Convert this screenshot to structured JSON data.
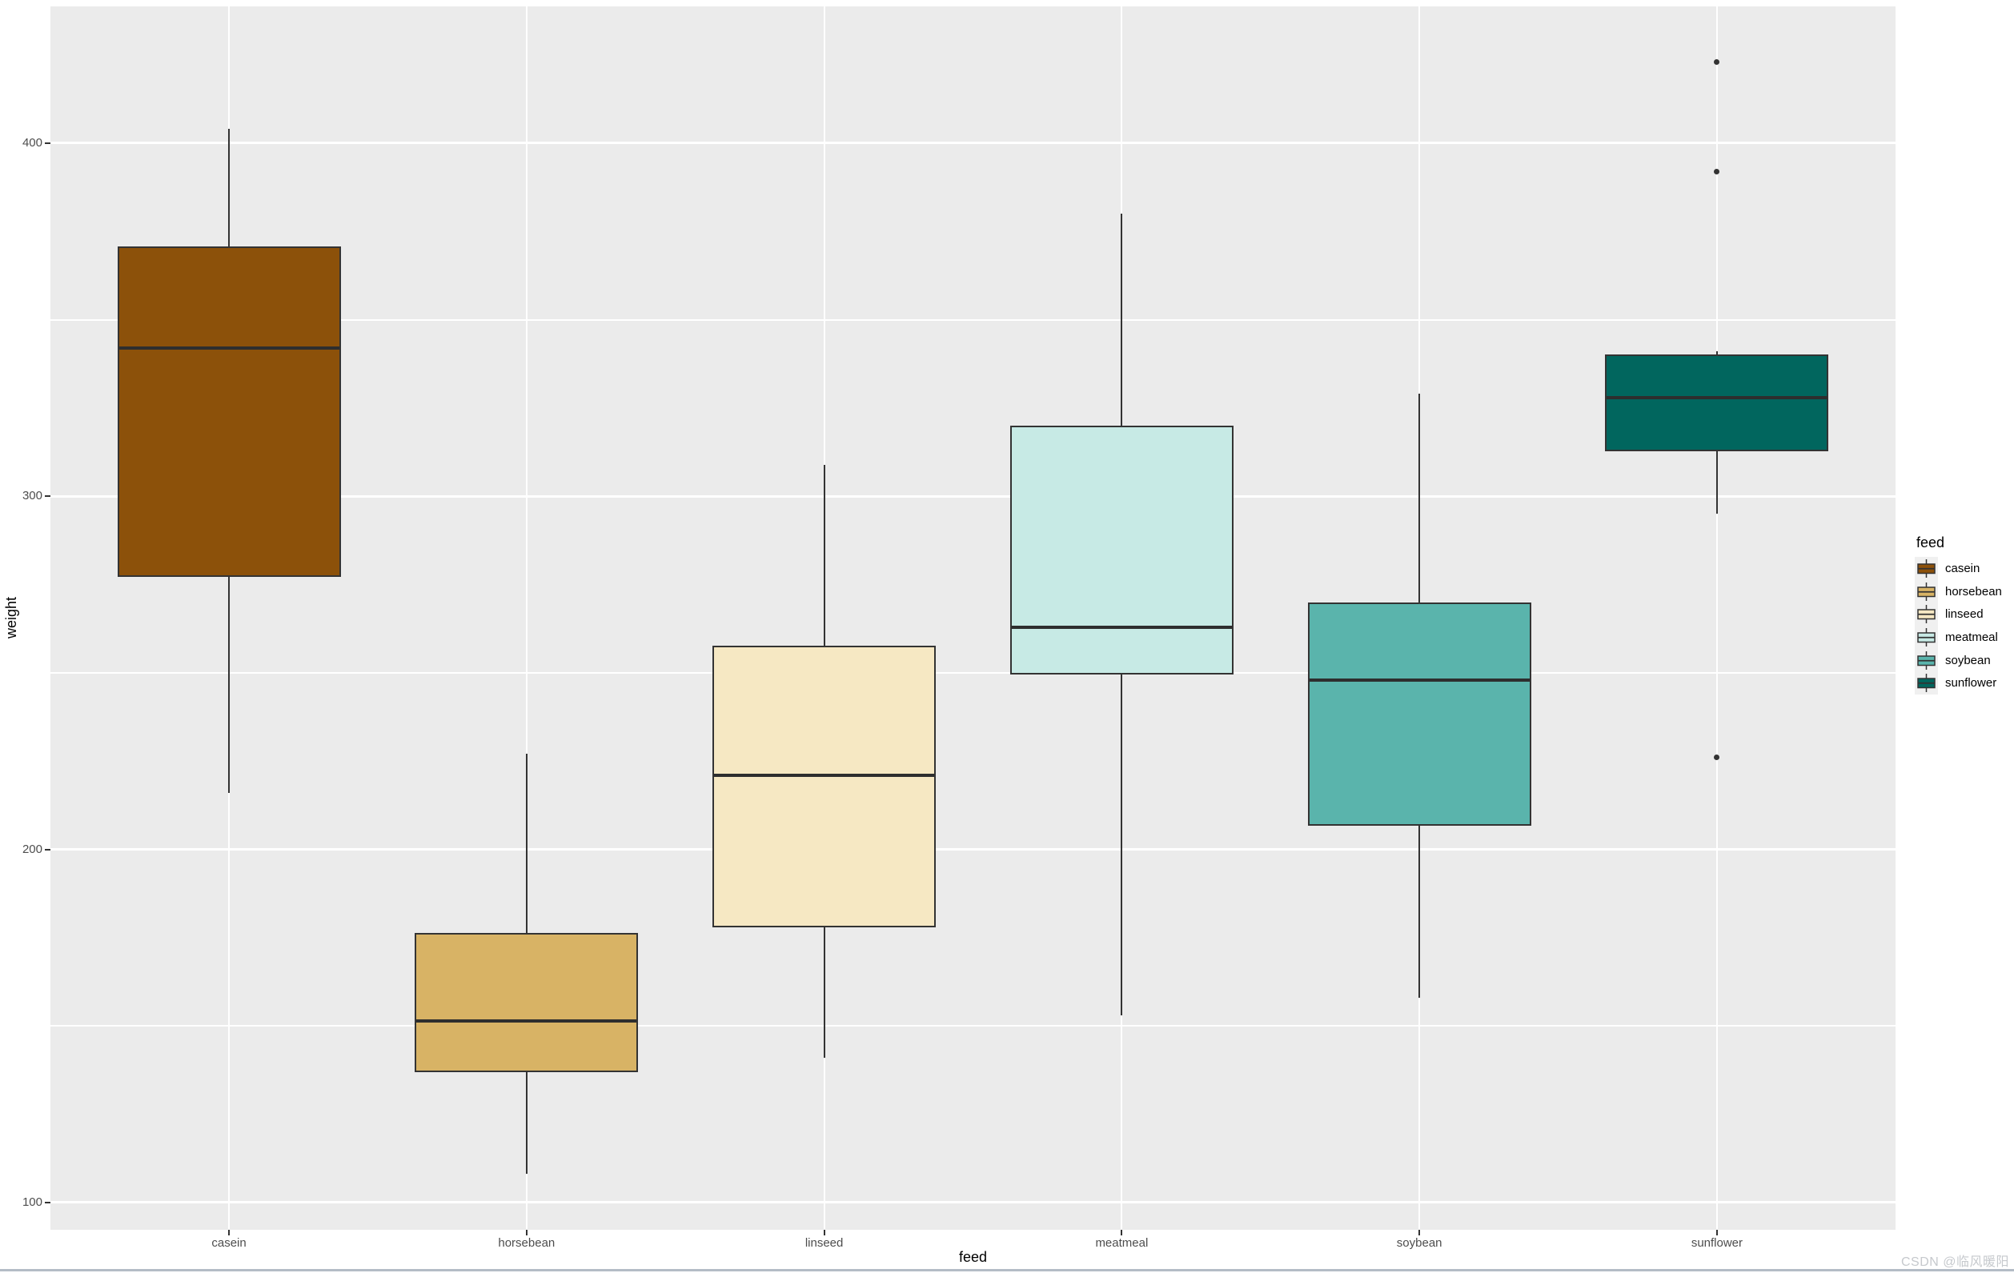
{
  "watermark": "CSDN @临风暖阳",
  "chart_data": {
    "type": "boxplot",
    "title": "",
    "xlabel": "feed",
    "ylabel": "weight",
    "legend": {
      "title": "feed",
      "position": "right"
    },
    "panel_bg": "#EBEBEB",
    "grid_color": "#FFFFFF",
    "outline_color": "#333333",
    "ylim": [
      92.25,
      438.75
    ],
    "yticks": [
      100,
      200,
      300,
      400
    ],
    "yticks_minor": [
      150,
      250,
      350
    ],
    "categories": [
      "casein",
      "horsebean",
      "linseed",
      "meatmeal",
      "soybean",
      "sunflower"
    ],
    "groups": [
      {
        "name": "casein",
        "color": "#8C510A",
        "whisker_low": 216,
        "q1": 277.25,
        "median": 342,
        "q3": 370.75,
        "whisker_high": 404,
        "outliers": []
      },
      {
        "name": "horsebean",
        "color": "#D8B365",
        "whisker_low": 108,
        "q1": 137,
        "median": 151.5,
        "q3": 176.25,
        "whisker_high": 227,
        "outliers": []
      },
      {
        "name": "linseed",
        "color": "#F6E8C3",
        "whisker_low": 141,
        "q1": 178,
        "median": 221,
        "q3": 257.75,
        "whisker_high": 309,
        "outliers": []
      },
      {
        "name": "meatmeal",
        "color": "#C7EAE5",
        "whisker_low": 153,
        "q1": 249.5,
        "median": 263,
        "q3": 320,
        "whisker_high": 380,
        "outliers": []
      },
      {
        "name": "soybean",
        "color": "#5AB4AC",
        "whisker_low": 158,
        "q1": 206.75,
        "median": 248,
        "q3": 270,
        "whisker_high": 329,
        "outliers": []
      },
      {
        "name": "sunflower",
        "color": "#01665E",
        "whisker_low": 295,
        "q1": 312.75,
        "median": 328,
        "q3": 340.25,
        "whisker_high": 341,
        "outliers": [
          423,
          392,
          226
        ]
      }
    ]
  }
}
